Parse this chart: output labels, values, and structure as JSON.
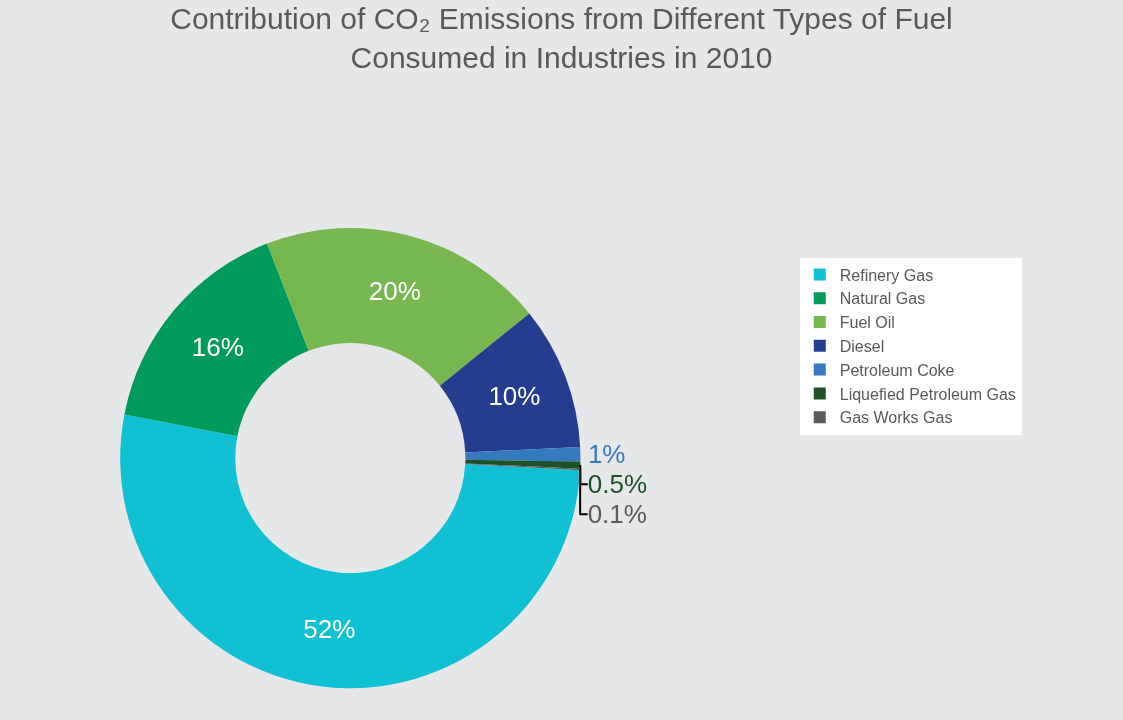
{
  "chart_data": {
    "type": "donut",
    "title": "Contribution of CO₂ Emissions from Different Types of Fuel\nConsumed in Industries in 2010",
    "categories": [
      "Refinery Gas",
      "Natural Gas",
      "Fuel Oil",
      "Diesel",
      "Petroleum Coke",
      "Liquefied Petroleum Gas",
      "Gas Works Gas"
    ],
    "values": [
      52,
      16,
      20,
      10,
      1,
      0.5,
      0.1
    ],
    "value_labels": [
      "52%",
      "16%",
      "20%",
      "10%",
      "1%",
      "0.5%",
      "0.1%"
    ],
    "colors": [
      "#0fc1d3",
      "#009b5a",
      "#76b84f",
      "#253d8f",
      "#3579bf",
      "#1d5128",
      "#5b5b5b"
    ],
    "legend": "right"
  }
}
